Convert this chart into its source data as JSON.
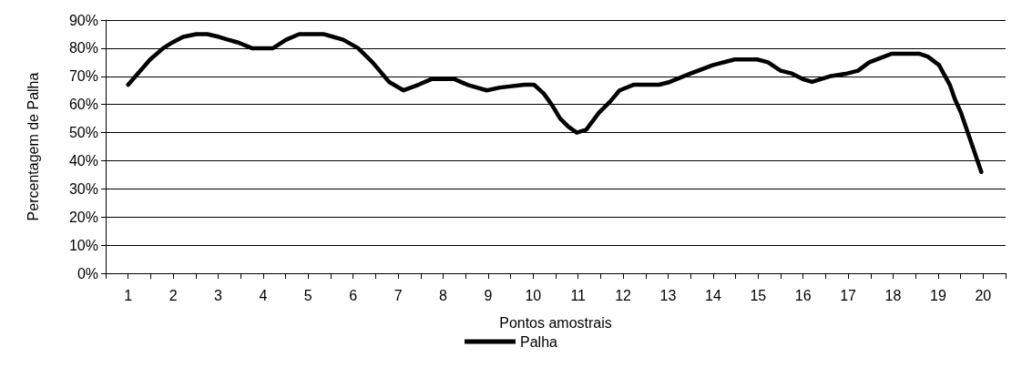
{
  "chart_data": {
    "type": "line",
    "xlabel": "Pontos amostrais",
    "ylabel": "Percentagem de Palha",
    "x": [
      1,
      1.49,
      1.78,
      1.98,
      2.22,
      2.51,
      2.76,
      3.02,
      3.22,
      3.45,
      3.75,
      4,
      4.22,
      4.51,
      4.8,
      5.05,
      5.34,
      5.56,
      5.78,
      6.11,
      6.43,
      6.8,
      7.12,
      7.45,
      7.74,
      7.96,
      8.25,
      8.54,
      8.97,
      9.26,
      9.81,
      10.02,
      10.23,
      10.41,
      10.6,
      10.79,
      10.97,
      11.18,
      11.46,
      11.71,
      11.92,
      12.23,
      12.52,
      12.8,
      13.04,
      13.5,
      14,
      14.48,
      14.76,
      14.98,
      15.22,
      15.5,
      15.75,
      15.99,
      16.2,
      16.59,
      16.98,
      17.22,
      17.47,
      17.96,
      18.21,
      18.59,
      18.77,
      19.02,
      19.26,
      19.37,
      19.51,
      19.96
    ],
    "series": [
      {
        "name": "Palha",
        "color": "#000000",
        "values": [
          67,
          76,
          80,
          82,
          84,
          85,
          85,
          84,
          83,
          82,
          80,
          80,
          80,
          83,
          85,
          85,
          85,
          84,
          83,
          80,
          75,
          68,
          65,
          67,
          69,
          69,
          69,
          67,
          65,
          66,
          67,
          67,
          64,
          60,
          55,
          52,
          50,
          51,
          57,
          61,
          65,
          67,
          67,
          67,
          68,
          71,
          74,
          76,
          76,
          76,
          75,
          72,
          71,
          69,
          68,
          70,
          71,
          72,
          75,
          78,
          78,
          78,
          77,
          74,
          67,
          62,
          57,
          36
        ]
      }
    ],
    "xlim": [
      0.5,
      20.5
    ],
    "xticks": [
      {
        "value": 0.5,
        "label": null
      },
      1,
      {
        "value": 1.5,
        "label": null
      },
      2,
      {
        "value": 2.5,
        "label": null
      },
      3,
      {
        "value": 3.5,
        "label": null
      },
      4,
      {
        "value": 4.5,
        "label": null
      },
      5,
      {
        "value": 5.5,
        "label": null
      },
      6,
      {
        "value": 6.5,
        "label": null
      },
      7,
      {
        "value": 7.5,
        "label": null
      },
      8,
      {
        "value": 8.5,
        "label": null
      },
      9,
      {
        "value": 9.5,
        "label": null
      },
      10,
      {
        "value": 10.5,
        "label": null
      },
      11,
      {
        "value": 11.5,
        "label": null
      },
      12,
      {
        "value": 12.5,
        "label": null
      },
      13,
      {
        "value": 13.5,
        "label": null
      },
      14,
      {
        "value": 14.5,
        "label": null
      },
      15,
      {
        "value": 15.5,
        "label": null
      },
      16,
      {
        "value": 16.5,
        "label": null
      },
      17,
      {
        "value": 17.5,
        "label": null
      },
      18,
      {
        "value": 18.5,
        "label": null
      },
      19,
      {
        "value": 19.5,
        "label": null
      },
      20,
      {
        "value": 20.5,
        "label": null
      }
    ],
    "ylim": [
      0,
      90
    ],
    "yticks": [
      {
        "value": 0,
        "label": "0%"
      },
      {
        "value": 10,
        "label": "10%"
      },
      {
        "value": 20,
        "label": "20%"
      },
      {
        "value": 30,
        "label": "30%"
      },
      {
        "value": 40,
        "label": "40%"
      },
      {
        "value": 50,
        "label": "50%"
      },
      {
        "value": 60,
        "label": "60%"
      },
      {
        "value": 70,
        "label": "70%"
      },
      {
        "value": 80,
        "label": "80%"
      },
      {
        "value": 90,
        "label": "90%"
      }
    ],
    "grid": "y",
    "legend": "bottom",
    "marker": "none",
    "line_style": "solid"
  }
}
